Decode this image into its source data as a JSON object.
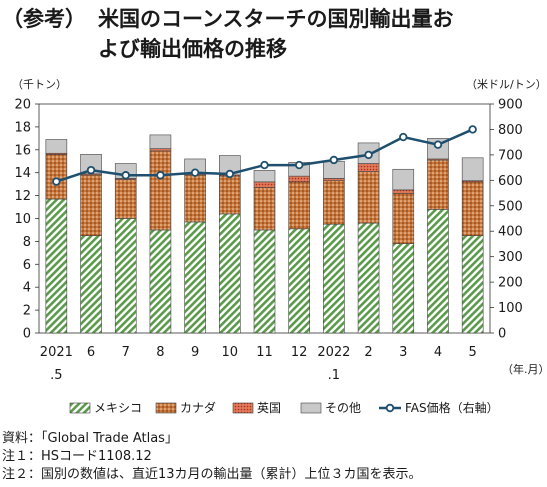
{
  "title": {
    "prefix": "（参考）",
    "line1": "米国のコーンスターチの国別輸出量お",
    "line2": "よび輸出価格の推移"
  },
  "units": {
    "left": "（千トン）",
    "right": "（米ドル/トン）",
    "x": "（年.月）"
  },
  "notes": [
    "資料：「Global Trade Atlas」",
    "注１：HSコード1108.12",
    "注２：国別の数値は、直近13カ月の輸出量（累計）上位３カ国を表示。"
  ],
  "chart_data": {
    "type": "bar",
    "stacked": true,
    "categories": [
      "2021\n.5",
      "6",
      "7",
      "8",
      "9",
      "10",
      "11",
      "12",
      "2022\n.1",
      "2",
      "3",
      "4",
      "5"
    ],
    "left_axis": {
      "ylim": [
        0,
        20
      ],
      "ticks": [
        0,
        2,
        4,
        6,
        8,
        10,
        12,
        14,
        16,
        18,
        20
      ]
    },
    "right_axis": {
      "ylim": [
        0,
        900
      ],
      "ticks": [
        0,
        100,
        200,
        300,
        400,
        500,
        600,
        700,
        800,
        900
      ]
    },
    "series": [
      {
        "name": "メキシコ",
        "axis": "left",
        "color": "#5a9a4a",
        "pattern": "diag-green",
        "values": [
          11.7,
          8.5,
          10.0,
          9.0,
          9.7,
          10.4,
          9.0,
          9.1,
          9.5,
          9.6,
          7.8,
          10.8,
          8.5
        ]
      },
      {
        "name": "カナダ",
        "axis": "left",
        "color": "#b5652b",
        "pattern": "dots-brown",
        "values": [
          3.9,
          5.3,
          3.4,
          6.9,
          4.1,
          3.3,
          3.7,
          4.1,
          3.8,
          4.5,
          4.4,
          4.3,
          4.7
        ]
      },
      {
        "name": "英国",
        "axis": "left",
        "color": "#d24a2b",
        "pattern": "dots-red",
        "values": [
          0.1,
          0.1,
          0.1,
          0.2,
          0.1,
          0.1,
          0.5,
          0.5,
          0.2,
          0.7,
          0.3,
          0.1,
          0.1
        ]
      },
      {
        "name": "その他",
        "axis": "left",
        "color": "#c8c8c8",
        "pattern": "solid-gray",
        "values": [
          1.2,
          1.7,
          1.3,
          1.2,
          1.3,
          1.7,
          1.0,
          1.2,
          1.5,
          1.8,
          1.8,
          1.8,
          2.0
        ]
      },
      {
        "name": "FAS価格（右軸）",
        "axis": "right",
        "type": "line",
        "color": "#1e4f6e",
        "values": [
          595,
          640,
          620,
          620,
          630,
          625,
          660,
          660,
          680,
          700,
          770,
          740,
          800
        ]
      }
    ],
    "legend_position": "bottom",
    "grid": false
  }
}
